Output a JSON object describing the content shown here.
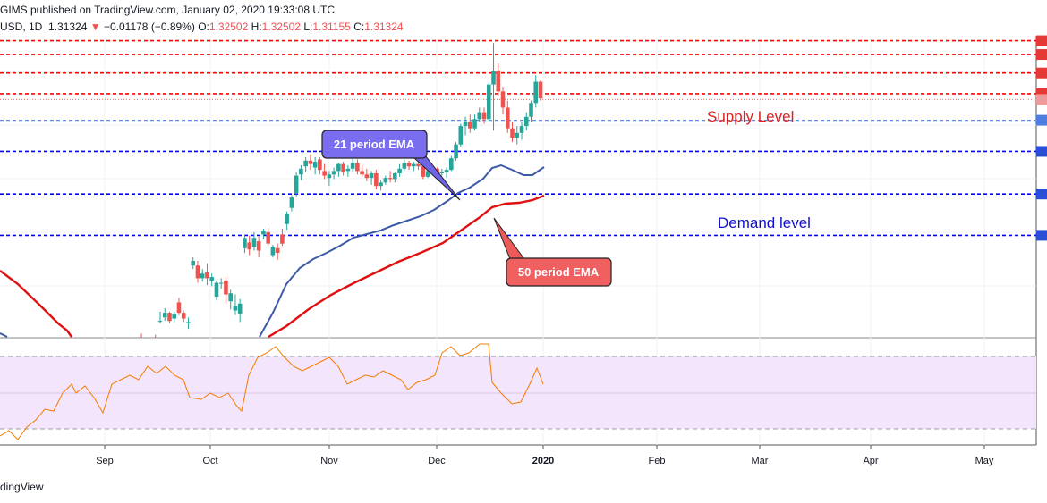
{
  "header": {
    "publisher_line": "GIMS published on TradingView.com, January 02, 2020 19:33:08 UTC",
    "symbol": "USD, 1D",
    "last": "1.31324",
    "change_arrow": "▼",
    "change": "−0.01178 (−0.89%)",
    "o_label": "O:",
    "o_value": "1.32502",
    "h_label": "H:",
    "h_value": "1.32502",
    "l_label": "L:",
    "l_value": "1.31155",
    "c_label": "C:",
    "c_value": "1.31324"
  },
  "footer": {
    "brand": "dingView"
  },
  "colors": {
    "up": "#26a69a",
    "down": "#ef5350",
    "ema21": "#3d5aa6",
    "ema50": "#e01010",
    "supply": "#ff0000",
    "demand": "#0000ff",
    "rsi": "#f57c00",
    "rsi_band": "#f3e5fb"
  },
  "annotations": {
    "supply": "Supply Level",
    "demand": "Demand level",
    "ema21": "21 period EMA",
    "ema50": "50 period EMA"
  },
  "chart_data": {
    "type": "candlestick",
    "x_ticks": [
      "Sep",
      "Oct",
      "Nov",
      "Dec",
      "2020",
      "Feb",
      "Mar",
      "Apr",
      "May"
    ],
    "resistance_levels": [
      1.352,
      1.346,
      1.338,
      1.329,
      1.3265
    ],
    "support_levels": [
      1.3175,
      1.304,
      1.2855,
      1.2676
    ],
    "ohlc": [
      [
        1.2225,
        1.225,
        1.2195,
        1.2215
      ],
      [
        1.219,
        1.2225,
        1.2175,
        1.222
      ],
      [
        1.211,
        1.2205,
        1.2095,
        1.219
      ],
      [
        1.2195,
        1.2245,
        1.216,
        1.2175
      ],
      [
        1.2305,
        1.2345,
        1.2295,
        1.2305
      ],
      [
        1.232,
        1.236,
        1.2305,
        1.234
      ],
      [
        1.234,
        1.2345,
        1.2295,
        1.2305
      ],
      [
        1.2315,
        1.2345,
        1.23,
        1.2335
      ],
      [
        1.2385,
        1.2405,
        1.233,
        1.234
      ],
      [
        1.234,
        1.235,
        1.23,
        1.2315
      ],
      [
        1.2295,
        1.232,
        1.227,
        1.23
      ],
      [
        1.2545,
        1.258,
        1.253,
        1.2565
      ],
      [
        1.2545,
        1.2565,
        1.247,
        1.249
      ],
      [
        1.249,
        1.253,
        1.2475,
        1.251
      ],
      [
        1.2515,
        1.2555,
        1.246,
        1.249
      ],
      [
        1.248,
        1.251,
        1.2455,
        1.2495
      ],
      [
        1.241,
        1.248,
        1.2395,
        1.247
      ],
      [
        1.247,
        1.249,
        1.2445,
        1.247
      ],
      [
        1.248,
        1.2495,
        1.238,
        1.242
      ],
      [
        1.239,
        1.244,
        1.2355,
        1.2425
      ],
      [
        1.235,
        1.242,
        1.233,
        1.237
      ],
      [
        1.2335,
        1.24,
        1.23,
        1.238
      ],
      [
        1.262,
        1.268,
        1.26,
        1.2665
      ],
      [
        1.2645,
        1.2675,
        1.259,
        1.2615
      ],
      [
        1.2625,
        1.269,
        1.261,
        1.2665
      ],
      [
        1.265,
        1.267,
        1.258,
        1.261
      ],
      [
        1.268,
        1.2705,
        1.266,
        1.2695
      ],
      [
        1.269,
        1.271,
        1.263,
        1.264
      ],
      [
        1.259,
        1.2635,
        1.258,
        1.2625
      ],
      [
        1.262,
        1.264,
        1.257,
        1.26
      ],
      [
        1.268,
        1.2705,
        1.263,
        1.264
      ],
      [
        1.2725,
        1.278,
        1.27,
        1.277
      ],
      [
        1.2795,
        1.285,
        1.278,
        1.284
      ],
      [
        1.286,
        1.295,
        1.2845,
        1.2935
      ],
      [
        1.294,
        1.298,
        1.2915,
        1.2965
      ],
      [
        1.2975,
        1.3015,
        1.295,
        1.3
      ],
      [
        1.3,
        1.3025,
        1.296,
        1.2985
      ],
      [
        1.297,
        1.3015,
        1.294,
        1.2995
      ],
      [
        1.3005,
        1.3015,
        1.294,
        1.296
      ],
      [
        1.2955,
        1.2985,
        1.292,
        1.2935
      ],
      [
        1.2925,
        1.2955,
        1.289,
        1.294
      ],
      [
        1.294,
        1.297,
        1.292,
        1.2955
      ],
      [
        1.2955,
        1.299,
        1.293,
        1.2985
      ],
      [
        1.2985,
        1.2995,
        1.2935,
        1.295
      ],
      [
        1.2955,
        1.298,
        1.293,
        1.2965
      ],
      [
        1.2965,
        1.3015,
        1.295,
        1.299
      ],
      [
        1.299,
        1.3005,
        1.294,
        1.2955
      ],
      [
        1.2955,
        1.298,
        1.293,
        1.294
      ],
      [
        1.294,
        1.2965,
        1.291,
        1.2925
      ],
      [
        1.2925,
        1.2955,
        1.2895,
        1.2945
      ],
      [
        1.2945,
        1.296,
        1.2875,
        1.289
      ],
      [
        1.289,
        1.2915,
        1.287,
        1.2905
      ],
      [
        1.2905,
        1.2935,
        1.2895,
        1.2925
      ],
      [
        1.2925,
        1.2955,
        1.2905,
        1.292
      ],
      [
        1.292,
        1.295,
        1.2905,
        1.2945
      ],
      [
        1.2945,
        1.2985,
        1.293,
        1.2965
      ],
      [
        1.2965,
        1.3005,
        1.2955,
        1.299
      ],
      [
        1.299,
        1.3,
        1.296,
        1.2975
      ],
      [
        1.2975,
        1.2995,
        1.2955,
        1.2985
      ],
      [
        1.2985,
        1.3,
        1.296,
        1.2975
      ],
      [
        1.2975,
        1.298,
        1.292,
        1.293
      ],
      [
        1.293,
        1.2965,
        1.2925,
        1.2955
      ],
      [
        1.2955,
        1.298,
        1.294,
        1.2965
      ],
      [
        1.2965,
        1.297,
        1.293,
        1.2945
      ],
      [
        1.2945,
        1.2965,
        1.2935,
        1.295
      ],
      [
        1.295,
        1.297,
        1.2925,
        1.296
      ],
      [
        1.296,
        1.302,
        1.2955,
        1.301
      ],
      [
        1.301,
        1.308,
        1.3,
        1.307
      ],
      [
        1.307,
        1.316,
        1.306,
        1.315
      ],
      [
        1.315,
        1.319,
        1.311,
        1.317
      ],
      [
        1.317,
        1.32,
        1.312,
        1.314
      ],
      [
        1.314,
        1.32,
        1.313,
        1.318
      ],
      [
        1.318,
        1.323,
        1.317,
        1.321
      ],
      [
        1.321,
        1.323,
        1.316,
        1.318
      ],
      [
        1.318,
        1.334,
        1.317,
        1.333
      ],
      [
        1.333,
        1.351,
        1.313,
        1.339
      ],
      [
        1.339,
        1.342,
        1.328,
        1.33
      ],
      [
        1.33,
        1.332,
        1.32,
        1.323
      ],
      [
        1.323,
        1.326,
        1.312,
        1.314
      ],
      [
        1.314,
        1.317,
        1.308,
        1.31
      ],
      [
        1.31,
        1.315,
        1.307,
        1.312
      ],
      [
        1.312,
        1.317,
        1.309,
        1.315
      ],
      [
        1.315,
        1.321,
        1.313,
        1.319
      ],
      [
        1.319,
        1.326,
        1.317,
        1.325
      ],
      [
        1.325,
        1.337,
        1.323,
        1.3342
      ],
      [
        1.3342,
        1.335,
        1.326,
        1.327
      ]
    ],
    "rsi_levels": [
      70,
      30
    ]
  }
}
